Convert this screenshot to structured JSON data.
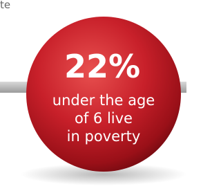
{
  "corner_text": "te",
  "stat": "22%",
  "caption_lines": [
    "under the age",
    "of 6 live",
    "in poverty"
  ]
}
